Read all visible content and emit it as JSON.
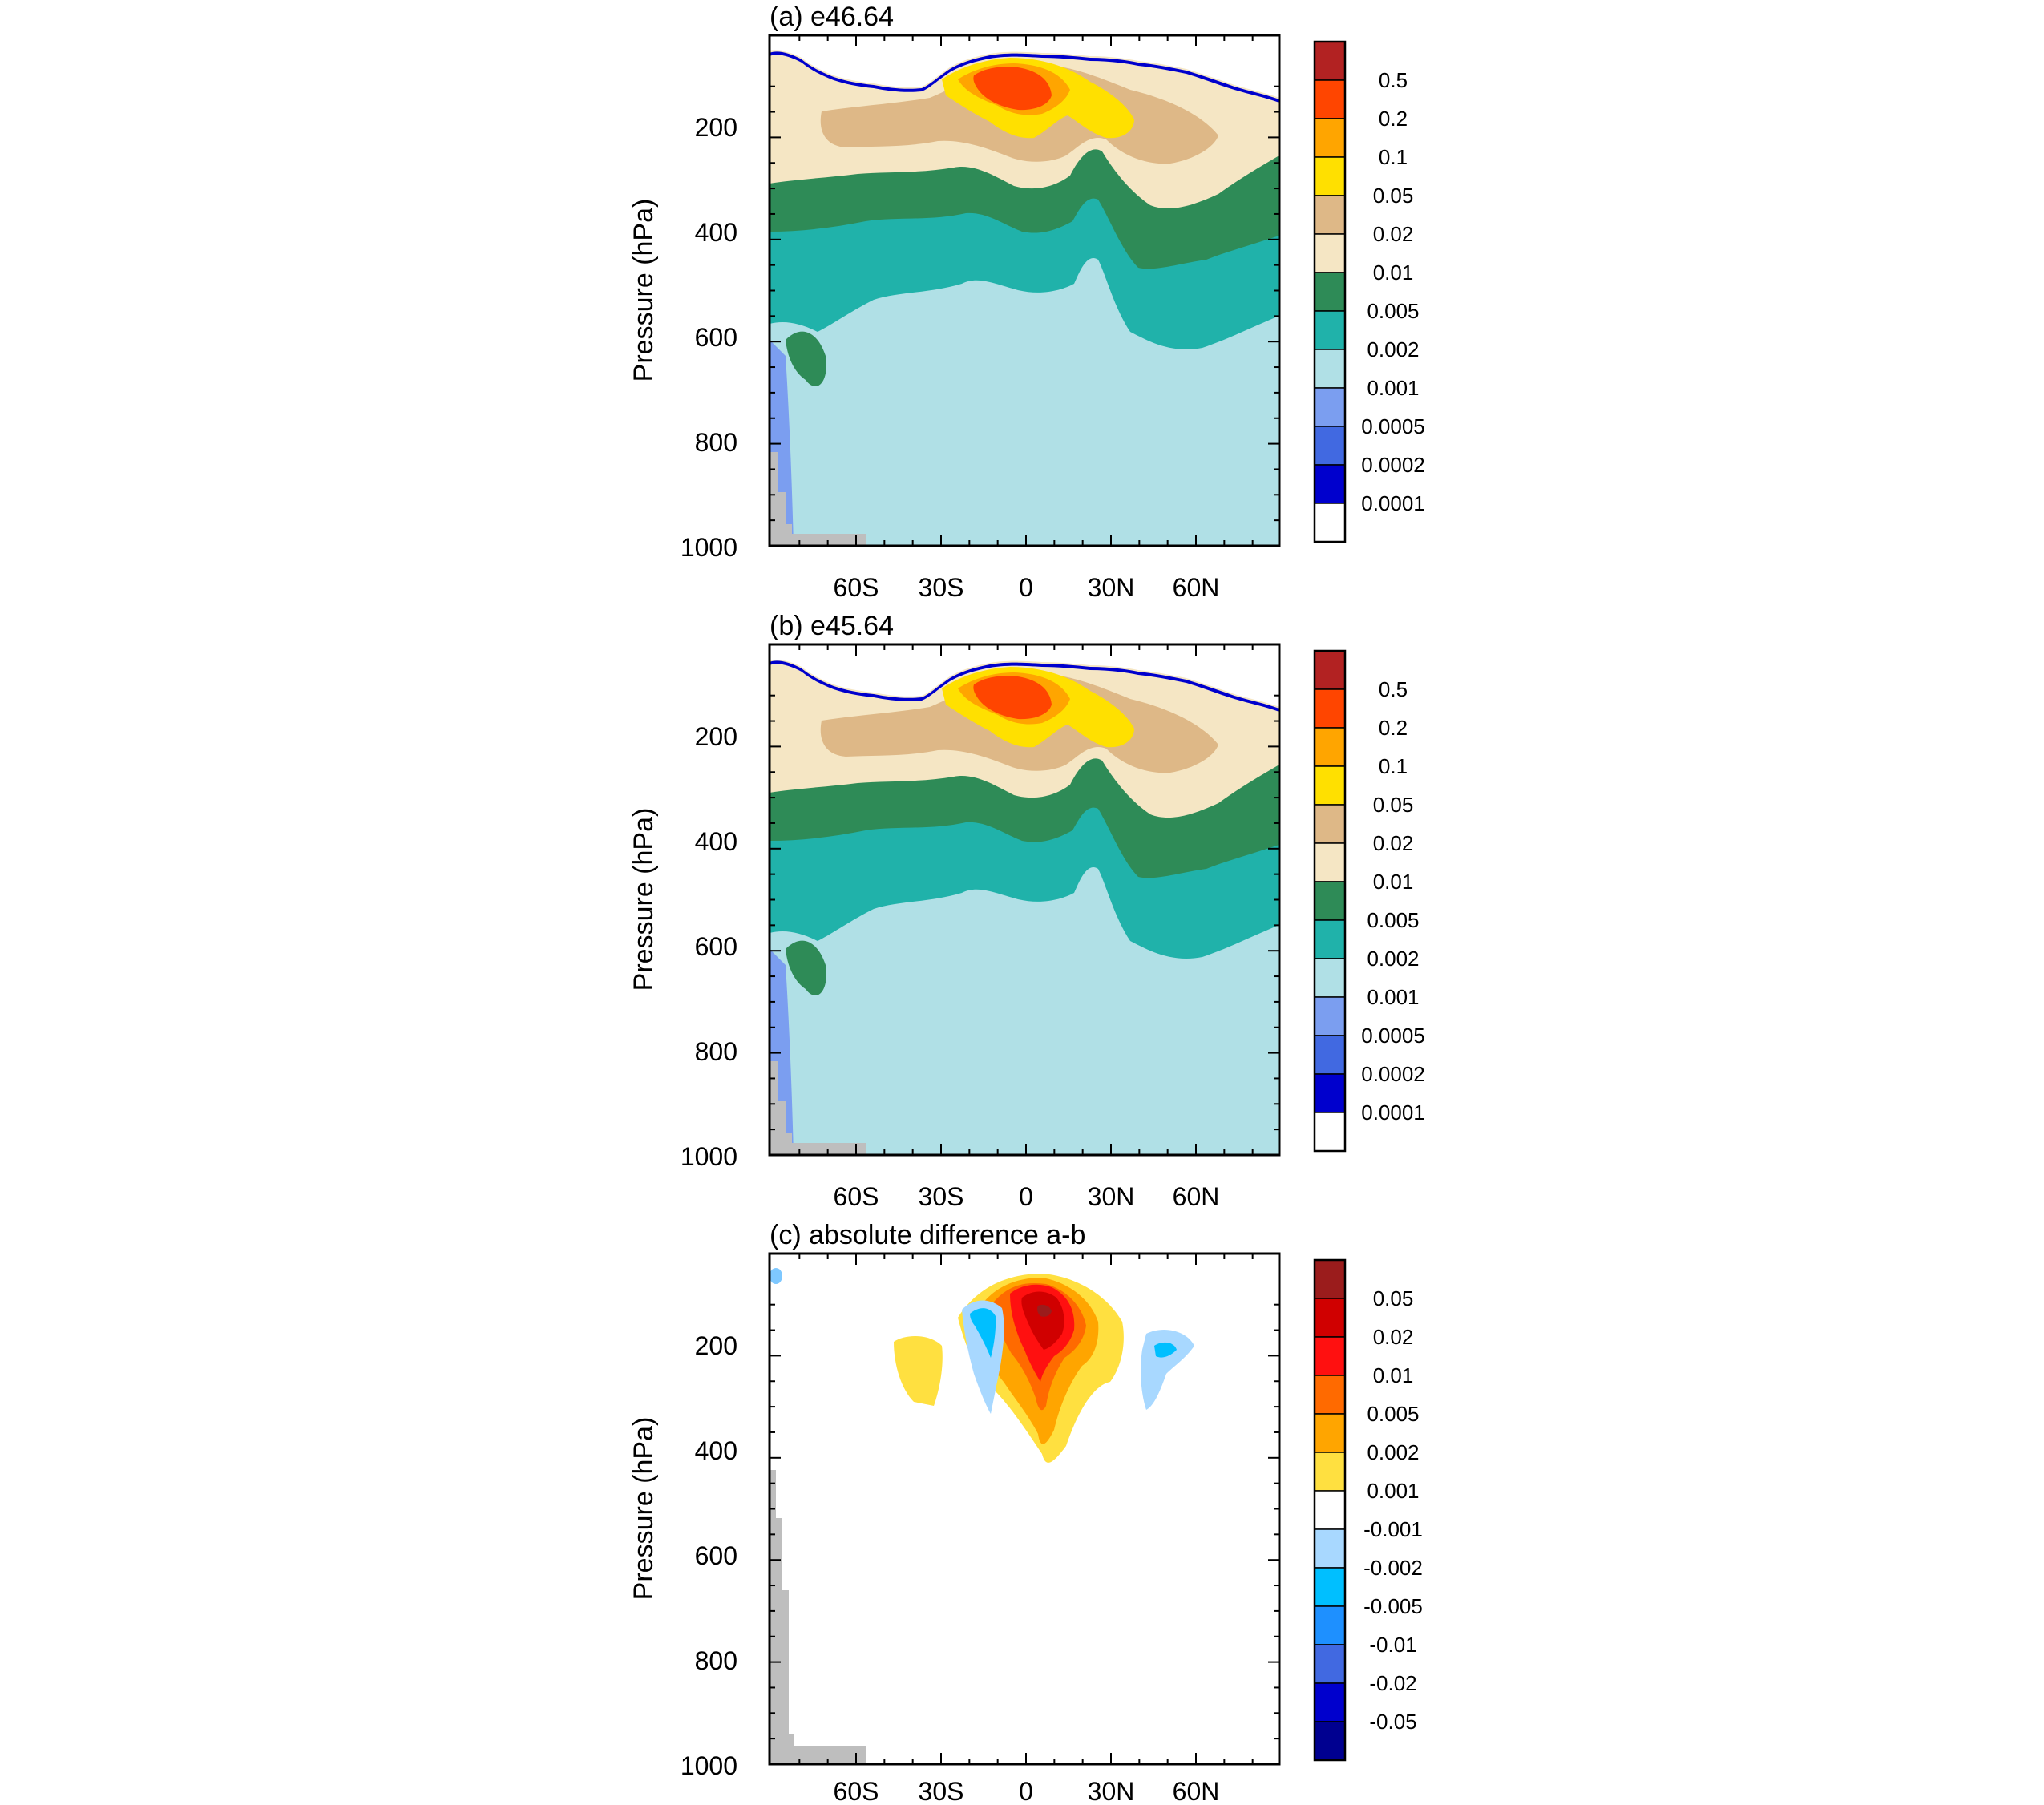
{
  "chart_data": [
    {
      "type": "heatmap",
      "title": "(a) e46.64",
      "ylabel": "Pressure (hPa)",
      "yticks": [
        "200",
        "400",
        "600",
        "800",
        "1000"
      ],
      "xticks": [
        "60S",
        "30S",
        "0",
        "30N",
        "60N"
      ],
      "colorbar": {
        "levels": [
          "0.5",
          "0.2",
          "0.1",
          "0.05",
          "0.02",
          "0.01",
          "0.005",
          "0.002",
          "0.001",
          "0.0005",
          "0.0002",
          "0.0001"
        ],
        "colors": [
          "#b22222",
          "#ff4500",
          "#ffa500",
          "#ffe000",
          "#deb887",
          "#f5e6c4",
          "#2e8b57",
          "#20b2aa",
          "#b0e0e6",
          "#7b9ef0",
          "#4169e1",
          "#0000cd",
          "#ffffff"
        ]
      }
    },
    {
      "type": "heatmap",
      "title": "(b) e45.64",
      "ylabel": "Pressure (hPa)",
      "yticks": [
        "200",
        "400",
        "600",
        "800",
        "1000"
      ],
      "xticks": [
        "60S",
        "30S",
        "0",
        "30N",
        "60N"
      ],
      "colorbar": {
        "levels": [
          "0.5",
          "0.2",
          "0.1",
          "0.05",
          "0.02",
          "0.01",
          "0.005",
          "0.002",
          "0.001",
          "0.0005",
          "0.0002",
          "0.0001"
        ],
        "colors": [
          "#b22222",
          "#ff4500",
          "#ffa500",
          "#ffe000",
          "#deb887",
          "#f5e6c4",
          "#2e8b57",
          "#20b2aa",
          "#b0e0e6",
          "#7b9ef0",
          "#4169e1",
          "#0000cd",
          "#ffffff"
        ]
      }
    },
    {
      "type": "heatmap",
      "title": "(c) absolute difference a-b",
      "ylabel": "Pressure (hPa)",
      "yticks": [
        "200",
        "400",
        "600",
        "800",
        "1000"
      ],
      "xticks": [
        "60S",
        "30S",
        "0",
        "30N",
        "60N"
      ],
      "colorbar": {
        "levels": [
          "0.05",
          "0.02",
          "0.01",
          "0.005",
          "0.002",
          "0.001",
          "-0.001",
          "-0.002",
          "-0.005",
          "-0.01",
          "-0.02",
          "-0.05"
        ],
        "colors": [
          "#9b1c1c",
          "#d00000",
          "#ff1010",
          "#ff6a00",
          "#ffa500",
          "#ffe040",
          "#ffffff",
          "#a8d8ff",
          "#00bfff",
          "#1e90ff",
          "#4169e1",
          "#0000cd",
          "#000090"
        ]
      }
    }
  ]
}
